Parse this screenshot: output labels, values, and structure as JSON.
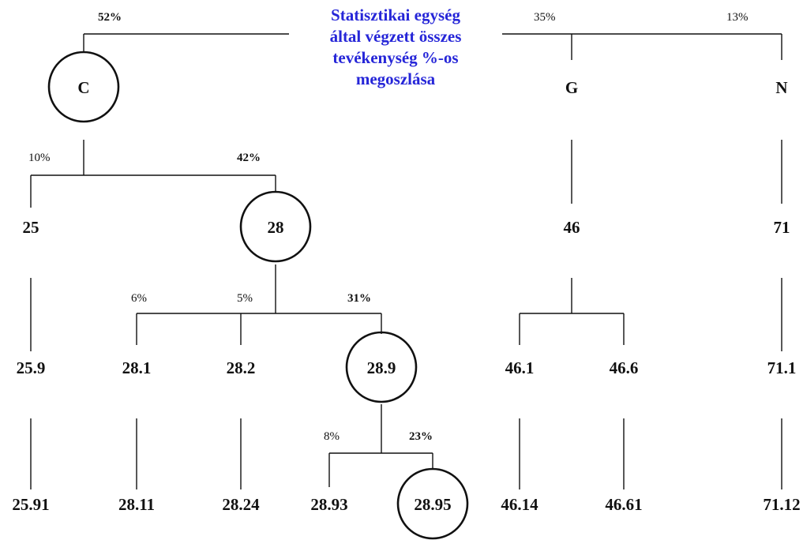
{
  "title_lines": [
    "Statisztikai egység",
    "által végzett összes",
    "tevékenység %-os",
    "megoszlása"
  ],
  "colors": {
    "title": "#2626d8",
    "lines": "#111111"
  },
  "nodes": {
    "C": "C",
    "G": "G",
    "N": "N",
    "n25": "25",
    "n28": "28",
    "n46": "46",
    "n71": "71",
    "n25_9": "25.9",
    "n28_1": "28.1",
    "n28_2": "28.2",
    "n28_9": "28.9",
    "n46_1": "46.1",
    "n46_6": "46.6",
    "n71_1": "71.1",
    "n25_91": "25.91",
    "n28_11": "28.11",
    "n28_24": "28.24",
    "n28_93": "28.93",
    "n28_95": "28.95",
    "n46_14": "46.14",
    "n46_61": "46.61",
    "n71_12": "71.12"
  },
  "highlighted": [
    "C",
    "n28",
    "n28_9",
    "n28_95"
  ],
  "shares": {
    "C": "52%",
    "G": "35%",
    "N": "13%",
    "n25": "10%",
    "n28": "42%",
    "n28_1": "6%",
    "n28_2": "5%",
    "n28_9": "31%",
    "n28_93": "8%",
    "n28_95": "23%"
  }
}
